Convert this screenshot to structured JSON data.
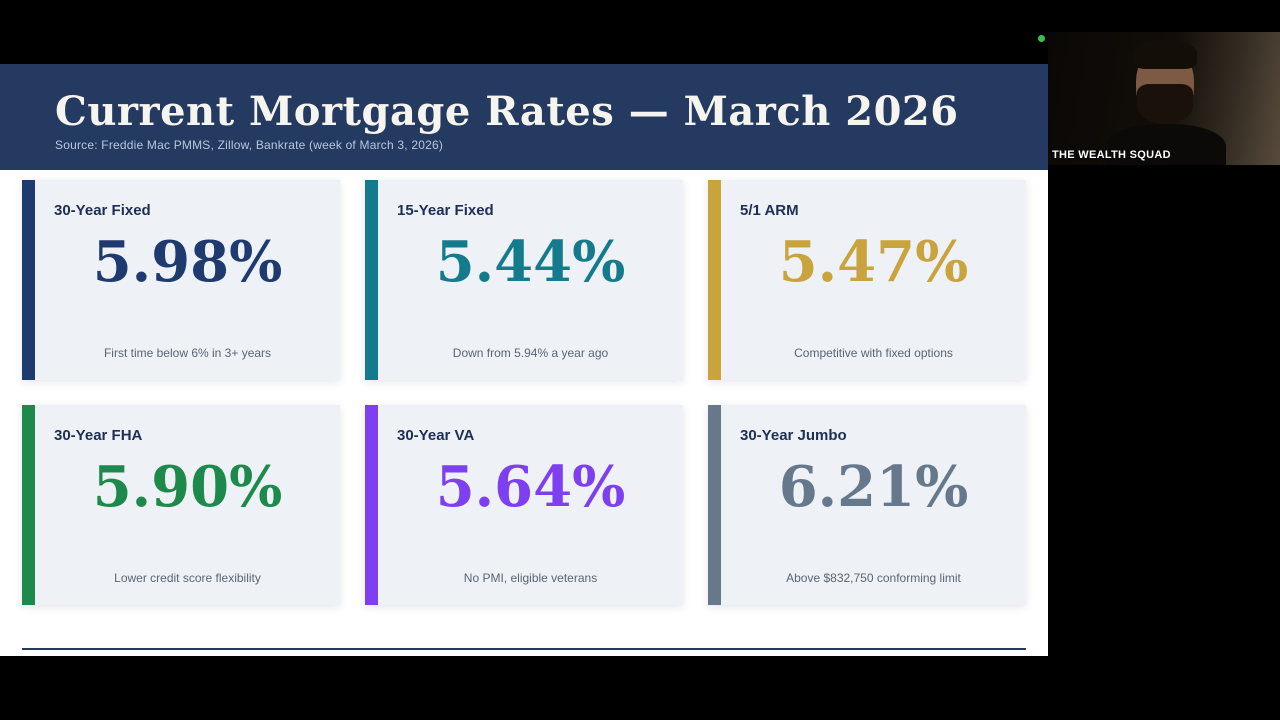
{
  "slide": {
    "title": "Current Mortgage Rates — March 2026",
    "source": "Source: Freddie Mac PMMS, Zillow, Bankrate (week of March 3, 2026)",
    "cards": [
      {
        "label": "30-Year Fixed",
        "rate": "5.98%",
        "note": "First time below 6% in 3+ years",
        "color": "#1e3a6e"
      },
      {
        "label": "15-Year Fixed",
        "rate": "5.44%",
        "note": "Down from 5.94% a year ago",
        "color": "#137b8c"
      },
      {
        "label": "5/1 ARM",
        "rate": "5.47%",
        "note": "Competitive with fixed options",
        "color": "#c9a43c"
      },
      {
        "label": "30-Year FHA",
        "rate": "5.90%",
        "note": "Lower credit score flexibility",
        "color": "#1d8a4b"
      },
      {
        "label": "30-Year VA",
        "rate": "5.64%",
        "note": "No PMI, eligible veterans",
        "color": "#7e3ff0"
      },
      {
        "label": "30-Year Jumbo",
        "rate": "6.21%",
        "note": "Above $832,750 conforming limit",
        "color": "#66788c"
      }
    ]
  },
  "webcam": {
    "participant_label": "THE WEALTH SQUAD"
  },
  "colors": {
    "header_bg": "#243a61",
    "slide_bg": "#ffffff",
    "card_bg": "#eef1f6",
    "indicator_green": "#35c14b"
  }
}
